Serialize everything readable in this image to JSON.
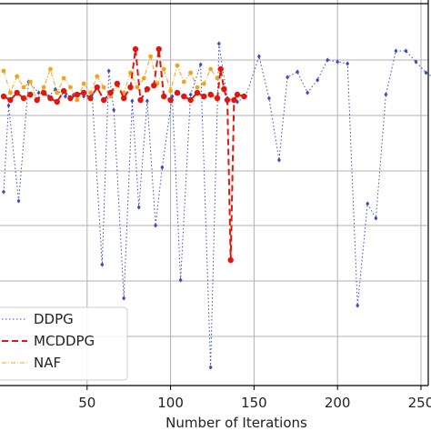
{
  "chart_data": {
    "type": "line",
    "title": "",
    "xlabel": "Number of Iterations",
    "ylabel": "",
    "xlim": [
      0,
      262
    ],
    "x_ticks": [
      50,
      100,
      150,
      200,
      250
    ],
    "grid": true,
    "legend_placement": "lower-left",
    "series": [
      {
        "name": "DDPG",
        "color": "#3b4cc0",
        "linestyle": "dotted",
        "marker": "diamond",
        "points": [
          [
            0,
            145
          ],
          [
            3,
            50
          ],
          [
            9,
            155
          ],
          [
            15,
            24
          ],
          [
            21,
            36
          ],
          [
            27,
            40
          ],
          [
            31,
            32
          ],
          [
            37,
            40
          ],
          [
            42,
            38
          ],
          [
            48,
            40
          ],
          [
            53,
            38
          ],
          [
            59,
            225
          ],
          [
            63,
            12
          ],
          [
            66,
            55
          ],
          [
            72,
            262
          ],
          [
            77,
            45
          ],
          [
            81,
            162
          ],
          [
            86,
            45
          ],
          [
            91,
            182
          ],
          [
            95,
            118
          ],
          [
            101,
            40
          ],
          [
            106,
            242
          ],
          [
            112,
            38
          ],
          [
            118,
            5
          ],
          [
            124,
            338
          ],
          [
            129,
            -18
          ],
          [
            134,
            42
          ],
          [
            140,
            46
          ],
          [
            145,
            40
          ],
          [
            153,
            -4
          ],
          [
            159,
            42
          ],
          [
            165,
            110
          ],
          [
            170,
            19
          ],
          [
            176,
            13
          ],
          [
            182,
            36
          ],
          [
            188,
            22
          ],
          [
            194,
            0
          ],
          [
            200,
            2
          ],
          [
            206,
            4
          ],
          [
            212,
            270
          ],
          [
            218,
            158
          ],
          [
            223,
            174
          ],
          [
            229,
            38
          ],
          [
            235,
            -10
          ],
          [
            241,
            -10
          ],
          [
            247,
            2
          ],
          [
            253,
            14
          ],
          [
            258,
            20
          ]
        ]
      },
      {
        "name": "MCDDPG",
        "color": "#e3160e",
        "linestyle": "dashed",
        "marker": "circle",
        "points": [
          [
            0,
            40
          ],
          [
            4,
            44
          ],
          [
            8,
            36
          ],
          [
            12,
            42
          ],
          [
            16,
            38
          ],
          [
            20,
            44
          ],
          [
            24,
            36
          ],
          [
            28,
            42
          ],
          [
            32,
            46
          ],
          [
            36,
            34
          ],
          [
            40,
            42
          ],
          [
            44,
            38
          ],
          [
            48,
            36
          ],
          [
            52,
            42
          ],
          [
            56,
            30
          ],
          [
            60,
            44
          ],
          [
            64,
            36
          ],
          [
            68,
            26
          ],
          [
            72,
            42
          ],
          [
            76,
            30
          ],
          [
            79,
            -12
          ],
          [
            82,
            44
          ],
          [
            86,
            32
          ],
          [
            90,
            28
          ],
          [
            93,
            -12
          ],
          [
            96,
            40
          ],
          [
            100,
            44
          ],
          [
            104,
            36
          ],
          [
            108,
            40
          ],
          [
            112,
            44
          ],
          [
            116,
            36
          ],
          [
            120,
            40
          ],
          [
            124,
            38
          ],
          [
            128,
            42
          ],
          [
            130,
            10
          ],
          [
            132,
            32
          ],
          [
            134,
            44
          ],
          [
            136,
            220
          ],
          [
            138,
            44
          ],
          [
            140,
            38
          ],
          [
            144,
            40
          ]
        ]
      },
      {
        "name": "NAF",
        "color": "#f2a31b",
        "linestyle": "dashdot",
        "marker": "circle",
        "points": [
          [
            0,
            12
          ],
          [
            4,
            36
          ],
          [
            8,
            18
          ],
          [
            12,
            30
          ],
          [
            16,
            24
          ],
          [
            20,
            44
          ],
          [
            24,
            30
          ],
          [
            28,
            10
          ],
          [
            32,
            36
          ],
          [
            36,
            20
          ],
          [
            40,
            30
          ],
          [
            44,
            44
          ],
          [
            48,
            26
          ],
          [
            52,
            36
          ],
          [
            56,
            18
          ],
          [
            60,
            30
          ],
          [
            64,
            40
          ],
          [
            68,
            28
          ],
          [
            72,
            36
          ],
          [
            76,
            14
          ],
          [
            80,
            30
          ],
          [
            84,
            20
          ],
          [
            88,
            -4
          ],
          [
            92,
            26
          ],
          [
            96,
            10
          ],
          [
            100,
            34
          ],
          [
            104,
            6
          ],
          [
            108,
            24
          ],
          [
            112,
            14
          ],
          [
            116,
            30
          ],
          [
            120,
            26
          ],
          [
            124,
            10
          ],
          [
            128,
            20
          ]
        ]
      }
    ]
  }
}
